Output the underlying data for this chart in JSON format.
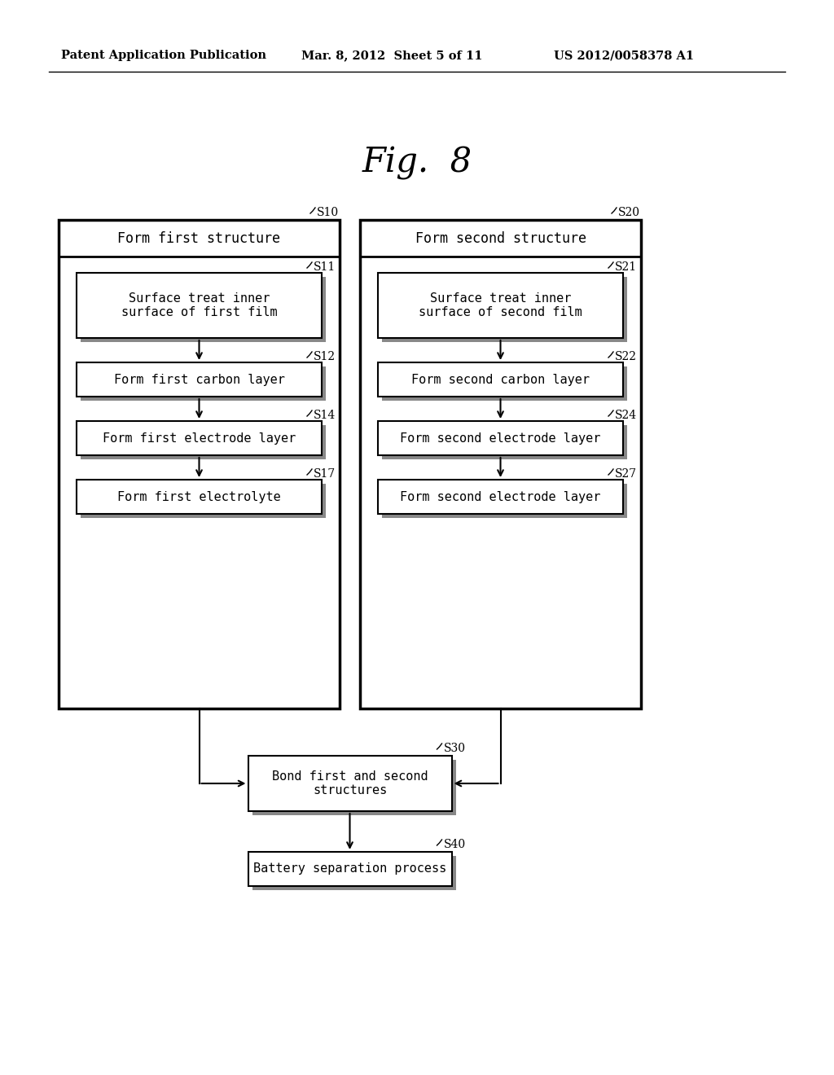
{
  "fig_label": "Fig.  8",
  "header_left": "Patent Application Publication",
  "header_mid": "Mar. 8, 2012  Sheet 5 of 11",
  "header_right": "US 2012/0058378 A1",
  "background": "#ffffff",
  "left_column": {
    "outer_label": "S10",
    "outer_title": "Form first structure",
    "steps": [
      {
        "label": "S11",
        "text": "Surface treat inner\nsurface of first film"
      },
      {
        "label": "S12",
        "text": "Form first carbon layer"
      },
      {
        "label": "S14",
        "text": "Form first electrode layer"
      },
      {
        "label": "S17",
        "text": "Form first electrolyte"
      }
    ]
  },
  "right_column": {
    "outer_label": "S20",
    "outer_title": "Form second structure",
    "steps": [
      {
        "label": "S21",
        "text": "Surface treat inner\nsurface of second film"
      },
      {
        "label": "S22",
        "text": "Form second carbon layer"
      },
      {
        "label": "S24",
        "text": "Form second electrode layer"
      },
      {
        "label": "S27",
        "text": "Form second electrode layer"
      }
    ]
  },
  "bottom_steps": [
    {
      "label": "S30",
      "text": "Bond first and second\nstructures"
    },
    {
      "label": "S40",
      "text": "Battery separation process"
    }
  ]
}
